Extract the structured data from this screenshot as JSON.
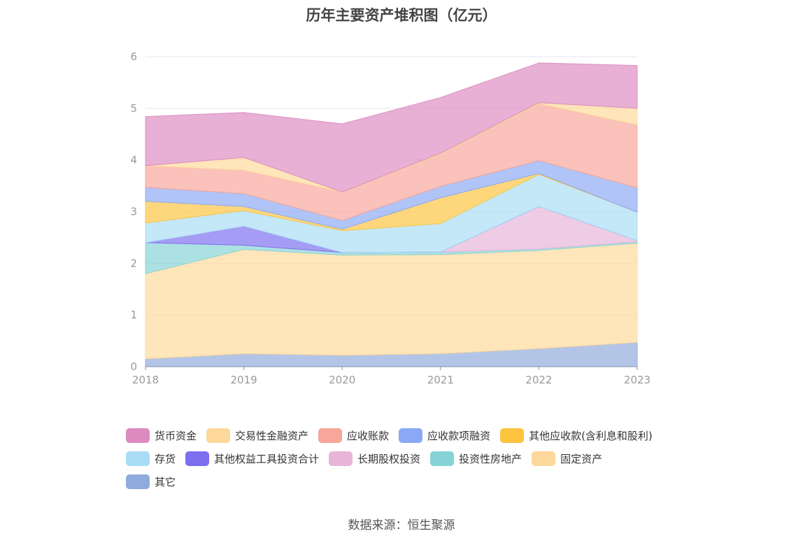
{
  "chart_data": {
    "type": "area",
    "stacked": true,
    "title": "历年主要资产堆积图（亿元）",
    "x": [
      "2018",
      "2019",
      "2020",
      "2021",
      "2022",
      "2023"
    ],
    "ylim": [
      0,
      6
    ],
    "yticks": [
      "0",
      "1",
      "2",
      "3",
      "4",
      "5",
      "6"
    ],
    "grid": true,
    "legend_position": "bottom",
    "series": [
      {
        "name": "其它",
        "color": "#8faadc",
        "values": [
          0.15,
          0.25,
          0.22,
          0.25,
          0.35,
          0.47
        ]
      },
      {
        "name": "固定资产",
        "color": "#fdd89a",
        "values": [
          1.65,
          2.02,
          1.94,
          1.92,
          1.9,
          1.92
        ]
      },
      {
        "name": "投资性房地产",
        "color": "#85d3d6",
        "values": [
          0.6,
          0.08,
          0.05,
          0.05,
          0.03,
          0.03
        ]
      },
      {
        "name": "长期股权投资",
        "color": "#e8b4d8",
        "values": [
          0,
          0,
          0,
          0,
          0.82,
          0.02
        ]
      },
      {
        "name": "其他权益工具投资合计",
        "color": "#7b6ff0",
        "values": [
          0,
          0.37,
          0,
          0,
          0,
          0
        ]
      },
      {
        "name": "存货",
        "color": "#a8ddf5",
        "values": [
          0.38,
          0.3,
          0.42,
          0.55,
          0.62,
          0.55
        ]
      },
      {
        "name": "其他应收款(含利息和股利)",
        "color": "#fdc43f",
        "values": [
          0.42,
          0.08,
          0.03,
          0.5,
          0.02,
          0
        ]
      },
      {
        "name": "应收款项融资",
        "color": "#8aa8f5",
        "values": [
          0.27,
          0.25,
          0.17,
          0.22,
          0.25,
          0.47
        ]
      },
      {
        "name": "应收账款",
        "color": "#f8a59a",
        "values": [
          0.42,
          0.45,
          0.55,
          0.62,
          1.1,
          1.22
        ]
      },
      {
        "name": "交易性金融资产",
        "color": "#fdd89a",
        "values": [
          0,
          0.25,
          0,
          0.02,
          0.02,
          0.32
        ]
      },
      {
        "name": "货币资金",
        "color": "#dc8ac0",
        "values": [
          0.95,
          0.87,
          1.32,
          1.08,
          0.77,
          0.83
        ]
      }
    ]
  },
  "chart_title": "历年主要资产堆积图（亿元）",
  "legend_rows": [
    [
      "货币资金",
      "交易性金融资产",
      "应收账款",
      "应收款项融资",
      "其他应收款(含利息和股利)"
    ],
    [
      "存货",
      "其他权益工具投资合计",
      "长期股权投资",
      "投资性房地产",
      "固定资产"
    ],
    [
      "其它"
    ]
  ],
  "legend_colors": {
    "货币资金": "#dc8ac0",
    "交易性金融资产": "#fdd89a",
    "应收账款": "#f8a59a",
    "应收款项融资": "#8aa8f5",
    "其他应收款(含利息和股利)": "#fdc43f",
    "存货": "#a8ddf5",
    "其他权益工具投资合计": "#7b6ff0",
    "长期股权投资": "#e8b4d8",
    "投资性房地产": "#85d3d6",
    "固定资产": "#fdd89a",
    "其它": "#8faadc"
  },
  "source_text": "数据来源：恒生聚源"
}
